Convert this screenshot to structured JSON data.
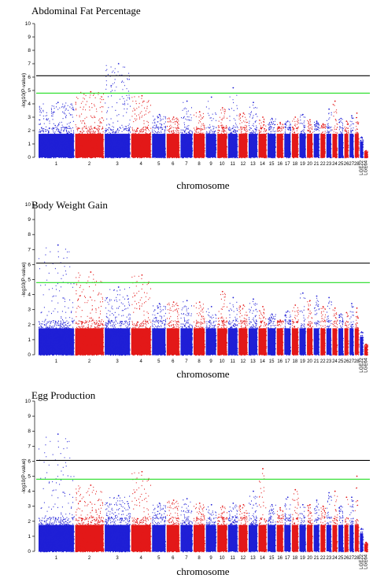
{
  "chart_data": [
    {
      "type": "scatter",
      "title": "Abdominal Fat Percentage",
      "xlabel": "chromosome",
      "ylabel": "-log10(P-value)",
      "ylim": [
        0,
        10
      ],
      "yticks": [
        0,
        1,
        2,
        3,
        4,
        5,
        6,
        7,
        8,
        9,
        10
      ],
      "threshold_lines": [
        {
          "value": 6.1,
          "color": "#000000"
        },
        {
          "value": 4.8,
          "color": "#22dd22"
        }
      ],
      "colors": {
        "odd": "#1f1fd6",
        "even": "#e31818"
      },
      "chromosomes": [
        {
          "label": "1",
          "max": 4.1
        },
        {
          "label": "2",
          "max": 4.9
        },
        {
          "label": "3",
          "max": 7.0
        },
        {
          "label": "4",
          "max": 4.6
        },
        {
          "label": "5",
          "max": 3.2
        },
        {
          "label": "6",
          "max": 3.0
        },
        {
          "label": "7",
          "max": 4.2
        },
        {
          "label": "8",
          "max": 3.4
        },
        {
          "label": "9",
          "max": 4.5
        },
        {
          "label": "10",
          "max": 3.7
        },
        {
          "label": "11",
          "max": 5.2
        },
        {
          "label": "12",
          "max": 3.3
        },
        {
          "label": "13",
          "max": 4.1
        },
        {
          "label": "14",
          "max": 3.0
        },
        {
          "label": "15",
          "max": 2.9
        },
        {
          "label": "16",
          "max": 2.6
        },
        {
          "label": "17",
          "max": 2.7
        },
        {
          "label": "18",
          "max": 3.0
        },
        {
          "label": "19",
          "max": 3.2
        },
        {
          "label": "20",
          "max": 2.8
        },
        {
          "label": "21",
          "max": 2.7
        },
        {
          "label": "22",
          "max": 2.5
        },
        {
          "label": "23",
          "max": 3.6
        },
        {
          "label": "24",
          "max": 4.2
        },
        {
          "label": "25",
          "max": 2.9
        },
        {
          "label": "26",
          "max": 2.7
        },
        {
          "label": "27",
          "max": 3.1
        },
        {
          "label": "28",
          "max": 3.3
        },
        {
          "label": "LGE22",
          "max": 1.5
        },
        {
          "label": "LGE64",
          "max": 0.5
        }
      ]
    },
    {
      "type": "scatter",
      "title": "Body Weight Gain",
      "xlabel": "chromosome",
      "ylabel": "-log10(P-value)",
      "ylim": [
        0,
        10
      ],
      "yticks": [
        0,
        1,
        2,
        3,
        4,
        5,
        6,
        7,
        8,
        9,
        10
      ],
      "threshold_lines": [
        {
          "value": 6.1,
          "color": "#000000"
        },
        {
          "value": 4.8,
          "color": "#22dd22"
        }
      ],
      "colors": {
        "odd": "#1f1fd6",
        "even": "#e31818"
      },
      "chromosomes": [
        {
          "label": "1",
          "max": 7.3
        },
        {
          "label": "2",
          "max": 5.5
        },
        {
          "label": "3",
          "max": 4.5
        },
        {
          "label": "4",
          "max": 5.3
        },
        {
          "label": "5",
          "max": 3.4
        },
        {
          "label": "6",
          "max": 3.5
        },
        {
          "label": "7",
          "max": 3.6
        },
        {
          "label": "8",
          "max": 3.5
        },
        {
          "label": "9",
          "max": 3.2
        },
        {
          "label": "10",
          "max": 4.2
        },
        {
          "label": "11",
          "max": 3.8
        },
        {
          "label": "12",
          "max": 3.3
        },
        {
          "label": "13",
          "max": 3.7
        },
        {
          "label": "14",
          "max": 3.2
        },
        {
          "label": "15",
          "max": 2.7
        },
        {
          "label": "16",
          "max": 2.3
        },
        {
          "label": "17",
          "max": 2.9
        },
        {
          "label": "18",
          "max": 3.3
        },
        {
          "label": "19",
          "max": 4.1
        },
        {
          "label": "20",
          "max": 3.6
        },
        {
          "label": "21",
          "max": 3.9
        },
        {
          "label": "22",
          "max": 3.2
        },
        {
          "label": "23",
          "max": 3.8
        },
        {
          "label": "24",
          "max": 3.1
        },
        {
          "label": "25",
          "max": 2.7
        },
        {
          "label": "26",
          "max": 2.8
        },
        {
          "label": "27",
          "max": 3.4
        },
        {
          "label": "28",
          "max": 3.1
        },
        {
          "label": "LGE22",
          "max": 1.5
        },
        {
          "label": "LGE64",
          "max": 0.7
        }
      ]
    },
    {
      "type": "scatter",
      "title": "Egg Production",
      "xlabel": "chromosome",
      "ylabel": "-log10(P-value)",
      "ylim": [
        0,
        10
      ],
      "yticks": [
        0,
        1,
        2,
        3,
        4,
        5,
        6,
        7,
        8,
        9,
        10
      ],
      "threshold_lines": [
        {
          "value": 6.05,
          "color": "#000000"
        },
        {
          "value": 4.8,
          "color": "#22dd22"
        }
      ],
      "colors": {
        "odd": "#1f1fd6",
        "even": "#e31818"
      },
      "chromosomes": [
        {
          "label": "1",
          "max": 7.8
        },
        {
          "label": "2",
          "max": 4.4
        },
        {
          "label": "3",
          "max": 3.7
        },
        {
          "label": "4",
          "max": 5.3
        },
        {
          "label": "5",
          "max": 3.2
        },
        {
          "label": "6",
          "max": 3.4
        },
        {
          "label": "7",
          "max": 3.5
        },
        {
          "label": "8",
          "max": 3.2
        },
        {
          "label": "9",
          "max": 3.1
        },
        {
          "label": "10",
          "max": 3.0
        },
        {
          "label": "11",
          "max": 3.2
        },
        {
          "label": "12",
          "max": 3.1
        },
        {
          "label": "13",
          "max": 4.0
        },
        {
          "label": "14",
          "max": 5.5
        },
        {
          "label": "15",
          "max": 3.1
        },
        {
          "label": "16",
          "max": 2.9
        },
        {
          "label": "17",
          "max": 3.6
        },
        {
          "label": "18",
          "max": 4.1
        },
        {
          "label": "19",
          "max": 3.1
        },
        {
          "label": "20",
          "max": 3.1
        },
        {
          "label": "21",
          "max": 3.4
        },
        {
          "label": "22",
          "max": 3.0
        },
        {
          "label": "23",
          "max": 3.9
        },
        {
          "label": "24",
          "max": 4.0
        },
        {
          "label": "25",
          "max": 3.0
        },
        {
          "label": "26",
          "max": 3.6
        },
        {
          "label": "27",
          "max": 3.6
        },
        {
          "label": "28",
          "max": 5.0
        },
        {
          "label": "LGE22",
          "max": 1.5
        },
        {
          "label": "LGE64",
          "max": 0.6
        }
      ]
    }
  ]
}
